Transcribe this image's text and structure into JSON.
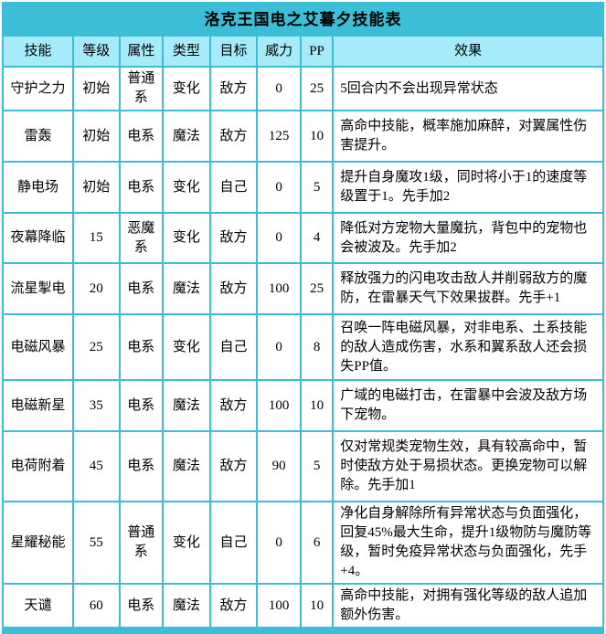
{
  "title": "洛克王国电之艾暮夕技能表",
  "colors": {
    "accent_cyan": "#3CBED7",
    "header_bg": "#A6EBF9",
    "cell_bg": "#FFFFFF",
    "text": "#000000"
  },
  "columns": [
    "技能",
    "等级",
    "属性",
    "类型",
    "目标",
    "威力",
    "PP",
    "效果"
  ],
  "rows": [
    {
      "skill": "守护之力",
      "level": "初始",
      "attribute": "普通系",
      "type": "变化",
      "target": "敌方",
      "power": "0",
      "pp": "25",
      "effect": "5回合内不会出现异常状态"
    },
    {
      "skill": "雷轰",
      "level": "初始",
      "attribute": "电系",
      "type": "魔法",
      "target": "敌方",
      "power": "125",
      "pp": "10",
      "effect": "高命中技能，概率施加麻醉，对翼属性伤害提升。"
    },
    {
      "skill": "静电场",
      "level": "初始",
      "attribute": "电系",
      "type": "变化",
      "target": "自己",
      "power": "0",
      "pp": "5",
      "effect": "提升自身魔攻1级，同时将小于1的速度等级置于1。先手加2"
    },
    {
      "skill": "夜幕降临",
      "level": "15",
      "attribute": "恶魔系",
      "type": "变化",
      "target": "敌方",
      "power": "0",
      "pp": "4",
      "effect": "降低对方宠物大量魔抗，背包中的宠物也会被波及。先手加2"
    },
    {
      "skill": "流星掣电",
      "level": "20",
      "attribute": "电系",
      "type": "魔法",
      "target": "敌方",
      "power": "100",
      "pp": "25",
      "effect": "释放强力的闪电攻击敌人并削弱敌方的魔防，在雷暴天气下效果拔群。先手+1"
    },
    {
      "skill": "电磁风暴",
      "level": "25",
      "attribute": "电系",
      "type": "变化",
      "target": "自己",
      "power": "0",
      "pp": "8",
      "effect": "召唤一阵电磁风暴，对非电系、土系技能的敌人造成伤害，水系和翼系敌人还会损失PP值。"
    },
    {
      "skill": "电磁新星",
      "level": "35",
      "attribute": "电系",
      "type": "魔法",
      "target": "敌方",
      "power": "100",
      "pp": "10",
      "effect": "广域的电磁打击，在雷暴中会波及敌方场下宠物。"
    },
    {
      "skill": "电荷附着",
      "level": "45",
      "attribute": "电系",
      "type": "魔法",
      "target": "敌方",
      "power": "90",
      "pp": "5",
      "effect": "仅对常规类宠物生效，具有较高命中，暂时使敌方处于易损状态。更换宠物可以解除。先手加1"
    },
    {
      "skill": "星耀秘能",
      "level": "55",
      "attribute": "普通系",
      "type": "变化",
      "target": "自己",
      "power": "0",
      "pp": "6",
      "effect": "净化自身解除所有异常状态与负面强化，回复45%最大生命，提升1级物防与魔防等级，暂时免疫异常状态与负面强化，先手+4。"
    },
    {
      "skill": "天谴",
      "level": "60",
      "attribute": "电系",
      "type": "魔法",
      "target": "敌方",
      "power": "100",
      "pp": "10",
      "effect": "高命中技能，对拥有强化等级的敌人追加额外伤害。"
    }
  ]
}
